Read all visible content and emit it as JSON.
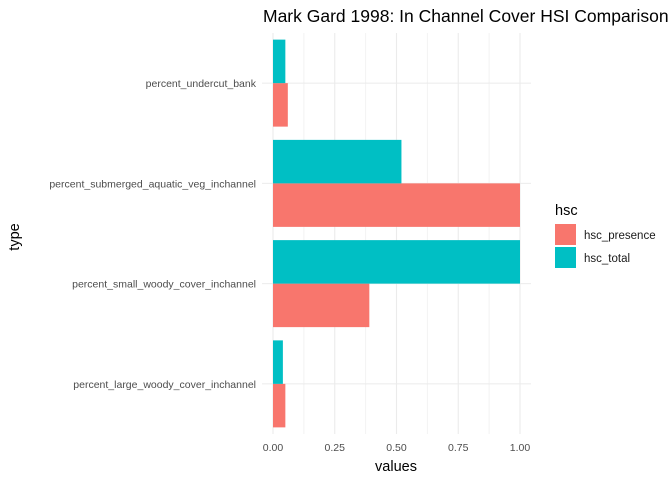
{
  "chart_data": {
    "type": "bar",
    "orientation": "horizontal",
    "title": "Mark Gard 1998: In Channel Cover HSI Comparison",
    "xlabel": "values",
    "ylabel": "type",
    "xlim": [
      0,
      1.05
    ],
    "xticks": [
      "0.00",
      "0.25",
      "0.50",
      "0.75",
      "1.00"
    ],
    "xtick_values": [
      0,
      0.25,
      0.5,
      0.75,
      1.0
    ],
    "grid": true,
    "categories": [
      "percent_undercut_bank",
      "percent_submerged_aquatic_veg_inchannel",
      "percent_small_woody_cover_inchannel",
      "percent_large_woody_cover_inchannel"
    ],
    "series": [
      {
        "name": "hsc_presence",
        "color": "#F8766D",
        "values": [
          0.06,
          1.0,
          0.39,
          0.05
        ]
      },
      {
        "name": "hsc_total",
        "color": "#00BFC4",
        "values": [
          0.05,
          0.52,
          1.0,
          0.04
        ]
      }
    ],
    "legend": {
      "title": "hsc",
      "position": "right"
    }
  }
}
